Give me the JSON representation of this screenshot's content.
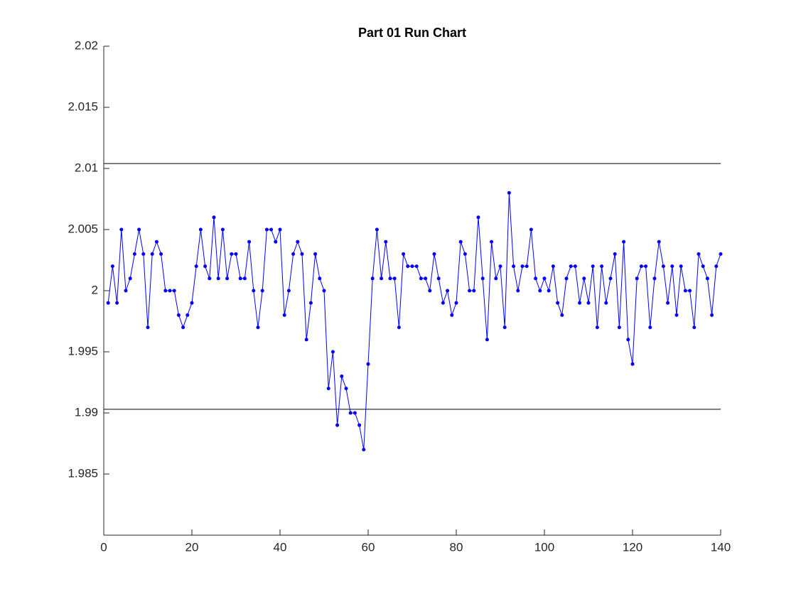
{
  "chart_data": {
    "type": "line",
    "title": "Part 01 Run Chart",
    "x": [
      1,
      2,
      3,
      4,
      5,
      6,
      7,
      8,
      9,
      10,
      11,
      12,
      13,
      14,
      15,
      16,
      17,
      18,
      19,
      20,
      21,
      22,
      23,
      24,
      25,
      26,
      27,
      28,
      29,
      30,
      31,
      32,
      33,
      34,
      35,
      36,
      37,
      38,
      39,
      40,
      41,
      42,
      43,
      44,
      45,
      46,
      47,
      48,
      49,
      50,
      51,
      52,
      53,
      54,
      55,
      56,
      57,
      58,
      59,
      60,
      61,
      62,
      63,
      64,
      65,
      66,
      67,
      68,
      69,
      70,
      71,
      72,
      73,
      74,
      75,
      76,
      77,
      78,
      79,
      80,
      81,
      82,
      83,
      84,
      85,
      86,
      87,
      88,
      89,
      90,
      91,
      92,
      93,
      94,
      95,
      96,
      97,
      98,
      99,
      100,
      101,
      102,
      103,
      104,
      105,
      106,
      107,
      108,
      109,
      110,
      111,
      112,
      113,
      114,
      115,
      116,
      117,
      118,
      119,
      120,
      121,
      122,
      123,
      124,
      125,
      126,
      127,
      128,
      129,
      130,
      131,
      132,
      133,
      134,
      135,
      136,
      137,
      138,
      139,
      140
    ],
    "series": [
      {
        "color": "#0000ff",
        "values": [
          1.999,
          2.002,
          1.999,
          2.005,
          2.0,
          2.001,
          2.003,
          2.005,
          2.003,
          1.997,
          2.003,
          2.004,
          2.003,
          2.0,
          2.0,
          2.0,
          1.998,
          1.997,
          1.998,
          1.999,
          2.002,
          2.005,
          2.002,
          2.001,
          2.006,
          2.001,
          2.005,
          2.001,
          2.003,
          2.003,
          2.001,
          2.001,
          2.004,
          2.0,
          1.997,
          2.0,
          2.005,
          2.005,
          2.004,
          2.005,
          1.998,
          2.0,
          2.003,
          2.004,
          2.003,
          1.996,
          1.999,
          2.003,
          2.001,
          2.0,
          1.992,
          1.995,
          1.989,
          1.993,
          1.992,
          1.99,
          1.99,
          1.989,
          1.987,
          1.994,
          2.001,
          2.005,
          2.001,
          2.004,
          2.001,
          2.001,
          1.997,
          2.003,
          2.002,
          2.002,
          2.002,
          2.001,
          2.001,
          2.0,
          2.003,
          2.001,
          1.999,
          2.0,
          1.998,
          1.999,
          2.004,
          2.003,
          2.0,
          2.0,
          2.006,
          2.001,
          1.996,
          2.004,
          2.001,
          2.002,
          1.997,
          2.008,
          2.002,
          2.0,
          2.002,
          2.002,
          2.005,
          2.001,
          2.0,
          2.001,
          2.0,
          2.002,
          1.999,
          1.998,
          2.001,
          2.002,
          2.002,
          1.999,
          2.001,
          1.999,
          2.002,
          1.997,
          2.002,
          1.999,
          2.001,
          2.003,
          1.997,
          2.004,
          1.996,
          1.994,
          2.001,
          2.002,
          2.002,
          1.997,
          2.001,
          2.004,
          2.002,
          1.999,
          2.002,
          1.998,
          2.002,
          2.0,
          2.0,
          1.997,
          2.003,
          2.002,
          2.001,
          1.998,
          2.002,
          2.003
        ]
      }
    ],
    "reference_lines": [
      2.0104,
      1.9903
    ],
    "reference_color": "#000000",
    "xlim": [
      0,
      140
    ],
    "xticks": [
      0,
      20,
      40,
      60,
      80,
      100,
      120,
      140
    ],
    "ylim": [
      1.98,
      2.02
    ],
    "yticks": [
      1.985,
      1.99,
      1.995,
      2,
      2.005,
      2.01,
      2.015,
      2.02
    ]
  }
}
